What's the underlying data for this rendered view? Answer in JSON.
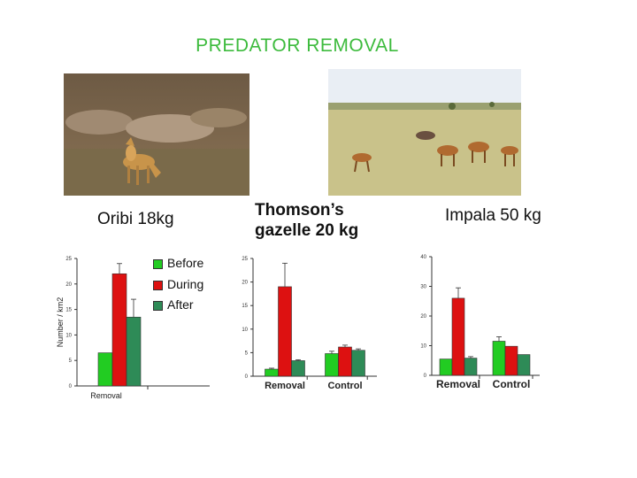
{
  "title": "PREDATOR REMOVAL",
  "colors": {
    "title": "#3dbb3d",
    "before": "#22cc22",
    "during": "#dd1111",
    "after": "#2e8b57"
  },
  "species": [
    {
      "name": "Oribi 18kg"
    },
    {
      "name": "Thomson’s gazelle 20 kg"
    },
    {
      "name": "Impala 50 kg"
    }
  ],
  "photos": [
    {
      "icon": "oribi-photo-icon"
    },
    {
      "icon": "gazelle-photo-icon"
    }
  ],
  "legend": [
    "Before",
    "During",
    "After"
  ],
  "chart_data": [
    {
      "type": "bar",
      "title": "Oribi 18kg",
      "ylabel": "Number / km2",
      "categories": [
        "Removal"
      ],
      "ylim": [
        0,
        25
      ],
      "yticks": [
        "0",
        "5",
        "10",
        "15",
        "20",
        "25"
      ],
      "series": [
        {
          "name": "Before",
          "values": [
            6.5
          ],
          "errors": [
            0
          ]
        },
        {
          "name": "During",
          "values": [
            22
          ],
          "errors": [
            2
          ]
        },
        {
          "name": "After",
          "values": [
            13.5
          ],
          "errors": [
            3.5
          ]
        }
      ]
    },
    {
      "type": "bar",
      "title": "Thomson’s gazelle 20 kg",
      "ylabel": "",
      "categories": [
        "Removal",
        "Control"
      ],
      "ylim": [
        0,
        25
      ],
      "yticks": [
        "0",
        "5",
        "10",
        "15",
        "20",
        "25"
      ],
      "series": [
        {
          "name": "Before",
          "values": [
            1.5,
            4.8
          ],
          "errors": [
            0.2,
            0.5
          ]
        },
        {
          "name": "During",
          "values": [
            19,
            6.2
          ],
          "errors": [
            5,
            0.4
          ]
        },
        {
          "name": "After",
          "values": [
            3.3,
            5.5
          ],
          "errors": [
            0.2,
            0.3
          ]
        }
      ]
    },
    {
      "type": "bar",
      "title": "Impala 50 kg",
      "ylabel": "",
      "categories": [
        "Removal",
        "Control"
      ],
      "ylim": [
        0,
        40
      ],
      "yticks": [
        "0",
        "10",
        "20",
        "30",
        "40"
      ],
      "series": [
        {
          "name": "Before",
          "values": [
            5.5,
            11.5
          ],
          "errors": [
            0,
            1.5
          ]
        },
        {
          "name": "During",
          "values": [
            26,
            9.8
          ],
          "errors": [
            3.5,
            0
          ]
        },
        {
          "name": "After",
          "values": [
            5.8,
            7
          ],
          "errors": [
            0.5,
            0
          ]
        }
      ]
    }
  ]
}
